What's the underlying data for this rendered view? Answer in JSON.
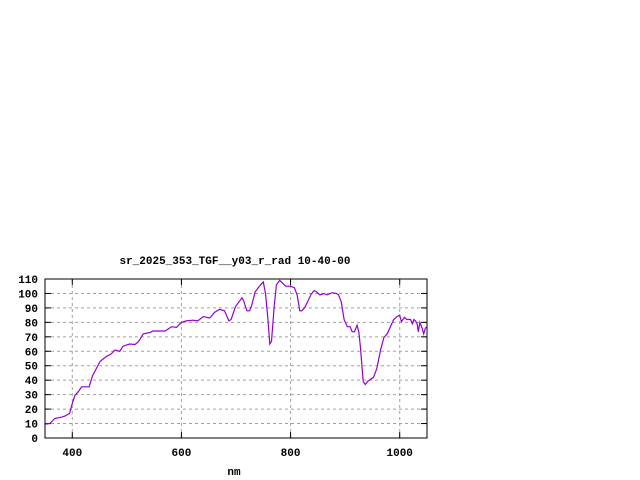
{
  "chart_data": {
    "type": "line",
    "title": "sr_2025_353_TGF__y03_r_rad 10-40-00",
    "xlabel": "nm",
    "ylabel": "",
    "xlim": [
      350,
      1050
    ],
    "ylim": [
      0,
      110
    ],
    "xticks": [
      400,
      600,
      800,
      1000
    ],
    "yticks": [
      0,
      10,
      20,
      30,
      40,
      50,
      60,
      70,
      80,
      90,
      100,
      110
    ],
    "grid": true,
    "legend": "none",
    "series": [
      {
        "color": "#9400d3",
        "x": [
          350,
          359,
          368,
          380,
          387,
          395,
          400,
          405,
          411,
          417,
          431,
          437,
          451,
          463,
          470,
          478,
          487,
          493,
          505,
          515,
          521,
          530,
          542,
          548,
          570,
          582,
          591,
          600,
          609,
          621,
          630,
          640,
          652,
          661,
          670,
          679,
          687,
          691,
          699,
          711,
          714,
          720,
          725,
          729,
          735,
          745,
          750,
          754,
          758,
          762,
          765,
          770,
          774,
          780,
          791,
          800,
          807,
          812,
          817,
          821,
          827,
          837,
          843,
          848,
          854,
          861,
          867,
          873,
          876,
          884,
          888,
          893,
          898,
          904,
          909,
          913,
          917,
          922,
          925,
          928,
          933,
          937,
          941,
          946,
          952,
          958,
          965,
          971,
          977,
          983,
          989,
          995,
          1000,
          1003,
          1009,
          1013,
          1020,
          1023,
          1026,
          1029,
          1032,
          1034,
          1037,
          1041,
          1044,
          1047,
          1050
        ],
        "y": [
          9.5,
          10,
          13.5,
          14.4,
          15.3,
          17,
          24,
          29.6,
          32,
          35.4,
          35.4,
          43,
          53,
          56.6,
          57.8,
          60.8,
          60,
          63.5,
          65,
          64.7,
          66.5,
          72,
          73,
          74,
          74,
          77,
          76.5,
          80,
          81,
          81.5,
          81,
          84,
          83,
          87,
          89,
          88,
          81,
          82,
          91,
          97,
          95,
          88,
          88,
          92,
          101,
          106,
          108,
          100,
          84,
          65,
          67,
          91,
          106,
          109,
          105,
          105,
          104,
          99,
          88,
          88,
          91,
          99,
          102,
          101,
          99,
          100,
          99,
          100,
          100.5,
          100,
          99,
          94,
          82,
          77,
          77,
          73.5,
          73.5,
          78,
          73.5,
          63,
          39,
          37,
          39,
          40.5,
          42,
          48,
          61,
          69.5,
          72,
          77,
          82,
          84,
          85,
          80.5,
          83.5,
          82,
          82,
          79,
          82,
          81,
          79,
          73.5,
          80,
          76,
          72,
          76,
          77
        ]
      }
    ]
  }
}
